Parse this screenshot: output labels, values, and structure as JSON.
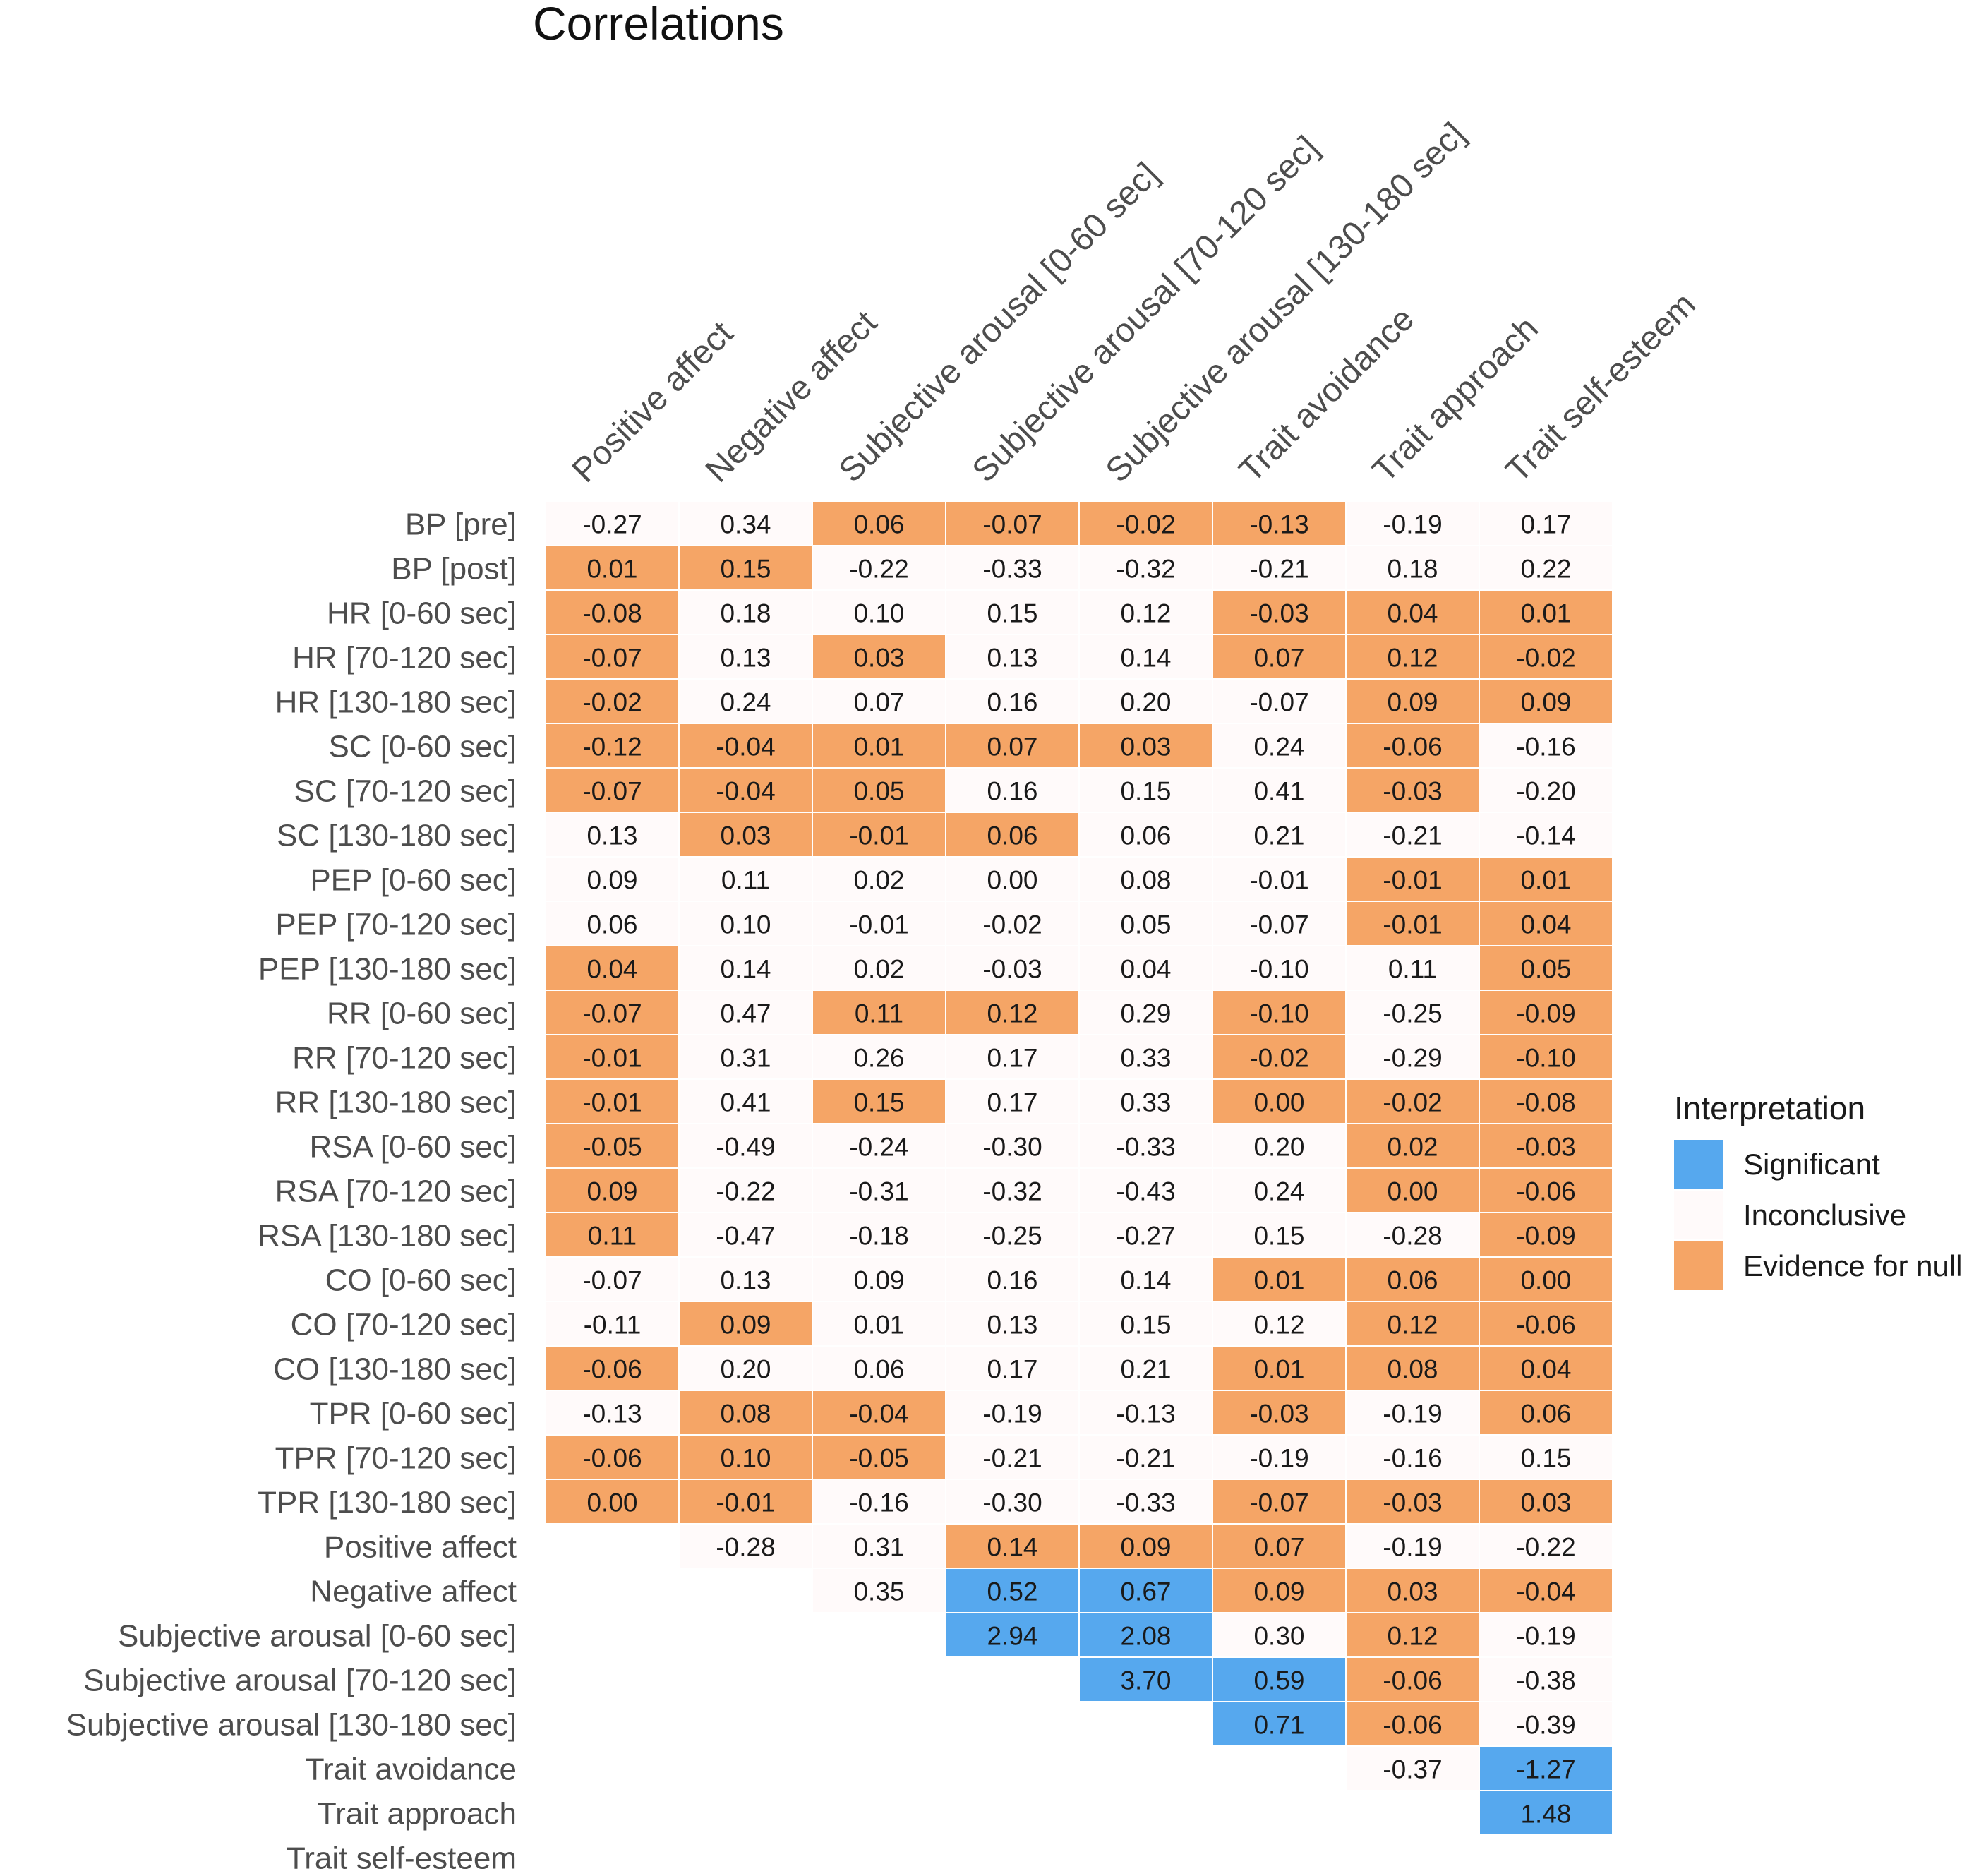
{
  "chart_data": {
    "type": "heatmap",
    "title": "Correlations",
    "columns": [
      "Positive affect",
      "Negative affect",
      "Subjective arousal [0-60 sec]",
      "Subjective arousal [70-120 sec]",
      "Subjective arousal [130-180 sec]",
      "Trait avoidance",
      "Trait approach",
      "Trait self-esteem"
    ],
    "rows": [
      "BP [pre]",
      "BP [post]",
      "HR [0-60 sec]",
      "HR [70-120 sec]",
      "HR [130-180 sec]",
      "SC [0-60 sec]",
      "SC [70-120 sec]",
      "SC [130-180 sec]",
      "PEP [0-60 sec]",
      "PEP [70-120 sec]",
      "PEP [130-180 sec]",
      "RR [0-60 sec]",
      "RR [70-120 sec]",
      "RR [130-180 sec]",
      "RSA [0-60 sec]",
      "RSA [70-120 sec]",
      "RSA [130-180 sec]",
      "CO [0-60 sec]",
      "CO [70-120 sec]",
      "CO [130-180 sec]",
      "TPR [0-60 sec]",
      "TPR [70-120 sec]",
      "TPR [130-180 sec]",
      "Positive affect",
      "Negative affect",
      "Subjective arousal [0-60 sec]",
      "Subjective arousal [70-120 sec]",
      "Subjective arousal [130-180 sec]",
      "Trait avoidance",
      "Trait approach",
      "Trait self-esteem"
    ],
    "values": [
      [
        "-0.27",
        "0.34",
        "0.06",
        "-0.07",
        "-0.02",
        "-0.13",
        "-0.19",
        "0.17"
      ],
      [
        "0.01",
        "0.15",
        "-0.22",
        "-0.33",
        "-0.32",
        "-0.21",
        "0.18",
        "0.22"
      ],
      [
        "-0.08",
        "0.18",
        "0.10",
        "0.15",
        "0.12",
        "-0.03",
        "0.04",
        "0.01"
      ],
      [
        "-0.07",
        "0.13",
        "0.03",
        "0.13",
        "0.14",
        "0.07",
        "0.12",
        "-0.02"
      ],
      [
        "-0.02",
        "0.24",
        "0.07",
        "0.16",
        "0.20",
        "-0.07",
        "0.09",
        "0.09"
      ],
      [
        "-0.12",
        "-0.04",
        "0.01",
        "0.07",
        "0.03",
        "0.24",
        "-0.06",
        "-0.16"
      ],
      [
        "-0.07",
        "-0.04",
        "0.05",
        "0.16",
        "0.15",
        "0.41",
        "-0.03",
        "-0.20"
      ],
      [
        "0.13",
        "0.03",
        "-0.01",
        "0.06",
        "0.06",
        "0.21",
        "-0.21",
        "-0.14"
      ],
      [
        "0.09",
        "0.11",
        "0.02",
        "0.00",
        "0.08",
        "-0.01",
        "-0.01",
        "0.01"
      ],
      [
        "0.06",
        "0.10",
        "-0.01",
        "-0.02",
        "0.05",
        "-0.07",
        "-0.01",
        "0.04"
      ],
      [
        "0.04",
        "0.14",
        "0.02",
        "-0.03",
        "0.04",
        "-0.10",
        "0.11",
        "0.05"
      ],
      [
        "-0.07",
        "0.47",
        "0.11",
        "0.12",
        "0.29",
        "-0.10",
        "-0.25",
        "-0.09"
      ],
      [
        "-0.01",
        "0.31",
        "0.26",
        "0.17",
        "0.33",
        "-0.02",
        "-0.29",
        "-0.10"
      ],
      [
        "-0.01",
        "0.41",
        "0.15",
        "0.17",
        "0.33",
        "0.00",
        "-0.02",
        "-0.08"
      ],
      [
        "-0.05",
        "-0.49",
        "-0.24",
        "-0.30",
        "-0.33",
        "0.20",
        "0.02",
        "-0.03"
      ],
      [
        "0.09",
        "-0.22",
        "-0.31",
        "-0.32",
        "-0.43",
        "0.24",
        "0.00",
        "-0.06"
      ],
      [
        "0.11",
        "-0.47",
        "-0.18",
        "-0.25",
        "-0.27",
        "0.15",
        "-0.28",
        "-0.09"
      ],
      [
        "-0.07",
        "0.13",
        "0.09",
        "0.16",
        "0.14",
        "0.01",
        "0.06",
        "0.00"
      ],
      [
        "-0.11",
        "0.09",
        "0.01",
        "0.13",
        "0.15",
        "0.12",
        "0.12",
        "-0.06"
      ],
      [
        "-0.06",
        "0.20",
        "0.06",
        "0.17",
        "0.21",
        "0.01",
        "0.08",
        "0.04"
      ],
      [
        "-0.13",
        "0.08",
        "-0.04",
        "-0.19",
        "-0.13",
        "-0.03",
        "-0.19",
        "0.06"
      ],
      [
        "-0.06",
        "0.10",
        "-0.05",
        "-0.21",
        "-0.21",
        "-0.19",
        "-0.16",
        "0.15"
      ],
      [
        "0.00",
        "-0.01",
        "-0.16",
        "-0.30",
        "-0.33",
        "-0.07",
        "-0.03",
        "0.03"
      ],
      [
        null,
        "-0.28",
        "0.31",
        "0.14",
        "0.09",
        "0.07",
        "-0.19",
        "-0.22"
      ],
      [
        null,
        null,
        "0.35",
        "0.52",
        "0.67",
        "0.09",
        "0.03",
        "-0.04"
      ],
      [
        null,
        null,
        null,
        "2.94",
        "2.08",
        "0.30",
        "0.12",
        "-0.19"
      ],
      [
        null,
        null,
        null,
        null,
        "3.70",
        "0.59",
        "-0.06",
        "-0.38"
      ],
      [
        null,
        null,
        null,
        null,
        null,
        "0.71",
        "-0.06",
        "-0.39"
      ],
      [
        null,
        null,
        null,
        null,
        null,
        null,
        "-0.37",
        "-1.27"
      ],
      [
        null,
        null,
        null,
        null,
        null,
        null,
        null,
        "1.48"
      ],
      [
        null,
        null,
        null,
        null,
        null,
        null,
        null,
        null
      ]
    ],
    "interpretation": [
      [
        "I",
        "I",
        "N",
        "N",
        "N",
        "N",
        "I",
        "I"
      ],
      [
        "N",
        "N",
        "I",
        "I",
        "I",
        "I",
        "I",
        "I"
      ],
      [
        "N",
        "I",
        "I",
        "I",
        "I",
        "N",
        "N",
        "N"
      ],
      [
        "N",
        "I",
        "N",
        "I",
        "I",
        "N",
        "N",
        "N"
      ],
      [
        "N",
        "I",
        "I",
        "I",
        "I",
        "I",
        "N",
        "N"
      ],
      [
        "N",
        "N",
        "N",
        "N",
        "N",
        "I",
        "N",
        "I"
      ],
      [
        "N",
        "N",
        "N",
        "I",
        "I",
        "I",
        "N",
        "I"
      ],
      [
        "I",
        "N",
        "N",
        "N",
        "I",
        "I",
        "I",
        "I"
      ],
      [
        "I",
        "I",
        "I",
        "I",
        "I",
        "I",
        "N",
        "N"
      ],
      [
        "I",
        "I",
        "I",
        "I",
        "I",
        "I",
        "N",
        "N"
      ],
      [
        "N",
        "I",
        "I",
        "I",
        "I",
        "I",
        "I",
        "N"
      ],
      [
        "N",
        "I",
        "N",
        "N",
        "I",
        "N",
        "I",
        "N"
      ],
      [
        "N",
        "I",
        "I",
        "I",
        "I",
        "N",
        "I",
        "N"
      ],
      [
        "N",
        "I",
        "N",
        "I",
        "I",
        "N",
        "N",
        "N"
      ],
      [
        "N",
        "I",
        "I",
        "I",
        "I",
        "I",
        "N",
        "N"
      ],
      [
        "N",
        "I",
        "I",
        "I",
        "I",
        "I",
        "N",
        "N"
      ],
      [
        "N",
        "I",
        "I",
        "I",
        "I",
        "I",
        "I",
        "N"
      ],
      [
        "I",
        "I",
        "I",
        "I",
        "I",
        "N",
        "N",
        "N"
      ],
      [
        "I",
        "N",
        "I",
        "I",
        "I",
        "I",
        "N",
        "N"
      ],
      [
        "N",
        "I",
        "I",
        "I",
        "I",
        "N",
        "N",
        "N"
      ],
      [
        "I",
        "N",
        "N",
        "I",
        "I",
        "N",
        "I",
        "N"
      ],
      [
        "N",
        "N",
        "N",
        "I",
        "I",
        "I",
        "I",
        "I"
      ],
      [
        "N",
        "N",
        "I",
        "I",
        "I",
        "N",
        "N",
        "N"
      ],
      [
        null,
        "I",
        "I",
        "N",
        "N",
        "N",
        "I",
        "I"
      ],
      [
        null,
        null,
        "I",
        "S",
        "S",
        "N",
        "N",
        "N"
      ],
      [
        null,
        null,
        null,
        "S",
        "S",
        "I",
        "N",
        "I"
      ],
      [
        null,
        null,
        null,
        null,
        "S",
        "S",
        "N",
        "I"
      ],
      [
        null,
        null,
        null,
        null,
        null,
        "S",
        "N",
        "I"
      ],
      [
        null,
        null,
        null,
        null,
        null,
        null,
        "I",
        "S"
      ],
      [
        null,
        null,
        null,
        null,
        null,
        null,
        null,
        "S"
      ],
      [
        null,
        null,
        null,
        null,
        null,
        null,
        null,
        null
      ]
    ],
    "legend": {
      "title": "Interpretation",
      "position": "right",
      "items": [
        {
          "key": "S",
          "label": "Significant",
          "color": "#56a8ee"
        },
        {
          "key": "I",
          "label": "Inconclusive",
          "color": "#fffafa"
        },
        {
          "key": "N",
          "label": "Evidence for null",
          "color": "#f5a566"
        }
      ]
    }
  }
}
